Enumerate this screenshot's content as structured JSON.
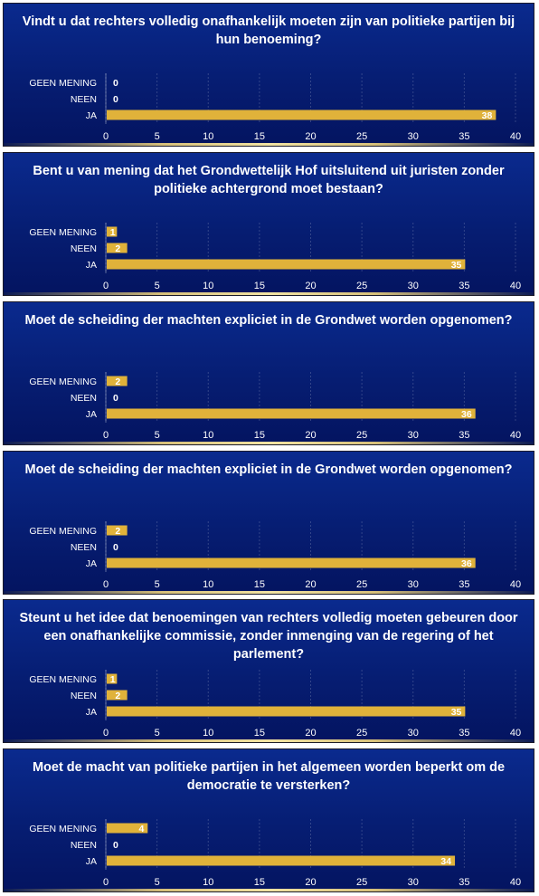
{
  "chart_data": [
    {
      "type": "bar",
      "orientation": "horizontal",
      "title": "Vindt u dat rechters volledig onafhankelijk moeten zijn van politieke partijen bij hun benoeming?",
      "categories": [
        "GEEN MENING",
        "NEEN",
        "JA"
      ],
      "values": [
        0,
        0,
        38
      ],
      "xlim": [
        0,
        40
      ],
      "xticks": [
        0,
        5,
        10,
        15,
        20,
        25,
        30,
        35,
        40
      ],
      "grid": true,
      "bar_color": "#e0b23a"
    },
    {
      "type": "bar",
      "orientation": "horizontal",
      "title": "Bent u van mening dat het Grondwettelijk Hof uitsluitend uit juristen zonder politieke achtergrond moet bestaan?",
      "categories": [
        "GEEN MENING",
        "NEEN",
        "JA"
      ],
      "values": [
        1,
        2,
        35
      ],
      "xlim": [
        0,
        40
      ],
      "xticks": [
        0,
        5,
        10,
        15,
        20,
        25,
        30,
        35,
        40
      ],
      "grid": true,
      "bar_color": "#e0b23a"
    },
    {
      "type": "bar",
      "orientation": "horizontal",
      "title": "Moet de scheiding der machten expliciet in de Grondwet worden opgenomen?",
      "categories": [
        "GEEN MENING",
        "NEEN",
        "JA"
      ],
      "values": [
        2,
        0,
        36
      ],
      "xlim": [
        0,
        40
      ],
      "xticks": [
        0,
        5,
        10,
        15,
        20,
        25,
        30,
        35,
        40
      ],
      "grid": true,
      "bar_color": "#e0b23a"
    },
    {
      "type": "bar",
      "orientation": "horizontal",
      "title": "Moet de scheiding der machten expliciet in de Grondwet worden opgenomen?",
      "categories": [
        "GEEN MENING",
        "NEEN",
        "JA"
      ],
      "values": [
        2,
        0,
        36
      ],
      "xlim": [
        0,
        40
      ],
      "xticks": [
        0,
        5,
        10,
        15,
        20,
        25,
        30,
        35,
        40
      ],
      "grid": true,
      "bar_color": "#e0b23a"
    },
    {
      "type": "bar",
      "orientation": "horizontal",
      "title": "Steunt u het idee dat benoemingen van rechters volledig moeten gebeuren door een onafhankelijke commissie, zonder inmenging van de regering of het parlement?",
      "categories": [
        "GEEN MENING",
        "NEEN",
        "JA"
      ],
      "values": [
        1,
        2,
        35
      ],
      "xlim": [
        0,
        40
      ],
      "xticks": [
        0,
        5,
        10,
        15,
        20,
        25,
        30,
        35,
        40
      ],
      "grid": true,
      "bar_color": "#e0b23a"
    },
    {
      "type": "bar",
      "orientation": "horizontal",
      "title": "Moet de macht van politieke partijen in het algemeen worden beperkt om de democratie te versterken?",
      "categories": [
        "GEEN MENING",
        "NEEN",
        "JA"
      ],
      "values": [
        4,
        0,
        34
      ],
      "xlim": [
        0,
        40
      ],
      "xticks": [
        0,
        5,
        10,
        15,
        20,
        25,
        30,
        35,
        40
      ],
      "grid": true,
      "bar_color": "#e0b23a"
    }
  ]
}
